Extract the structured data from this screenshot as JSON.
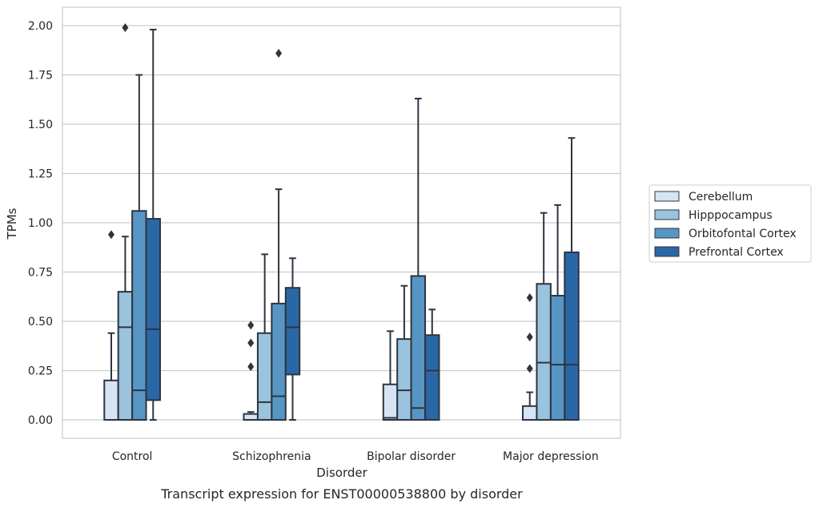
{
  "caption": "Transcript expression for ENST00000538800 by disorder",
  "chart_data": {
    "type": "box",
    "title": "",
    "xlabel": "Disorder",
    "ylabel": "TPMs",
    "ylim": [
      -0.1,
      2.1
    ],
    "yticks": [
      "0.00",
      "0.25",
      "0.50",
      "0.75",
      "1.00",
      "1.25",
      "1.50",
      "1.75",
      "2.00"
    ],
    "ytick_values": [
      0,
      0.25,
      0.5,
      0.75,
      1.0,
      1.25,
      1.5,
      1.75,
      2.0
    ],
    "grid": true,
    "legend_position": "right",
    "categories": [
      "Control",
      "Schizophrenia",
      "Bipolar disorder",
      "Major depression"
    ],
    "series": [
      {
        "name": "Cerebellum",
        "color": "#d6e4f3",
        "boxes": [
          {
            "q1": 0.0,
            "median": 0.0,
            "q3": 0.2,
            "whisker_low": 0.0,
            "whisker_high": 0.44,
            "outliers": [
              0.94
            ]
          },
          {
            "q1": 0.0,
            "median": 0.0,
            "q3": 0.03,
            "whisker_low": 0.0,
            "whisker_high": 0.04,
            "outliers": [
              0.27,
              0.39,
              0.48
            ]
          },
          {
            "q1": 0.0,
            "median": 0.01,
            "q3": 0.18,
            "whisker_low": 0.0,
            "whisker_high": 0.45,
            "outliers": []
          },
          {
            "q1": 0.0,
            "median": 0.0,
            "q3": 0.07,
            "whisker_low": 0.0,
            "whisker_high": 0.14,
            "outliers": [
              0.26,
              0.42,
              0.62
            ]
          }
        ]
      },
      {
        "name": "Hipppocampus",
        "color": "#9ac3dd",
        "boxes": [
          {
            "q1": 0.0,
            "median": 0.47,
            "q3": 0.65,
            "whisker_low": 0.0,
            "whisker_high": 0.93,
            "outliers": [
              1.99
            ]
          },
          {
            "q1": 0.0,
            "median": 0.09,
            "q3": 0.44,
            "whisker_low": 0.0,
            "whisker_high": 0.84,
            "outliers": []
          },
          {
            "q1": 0.0,
            "median": 0.15,
            "q3": 0.41,
            "whisker_low": 0.0,
            "whisker_high": 0.68,
            "outliers": []
          },
          {
            "q1": 0.0,
            "median": 0.29,
            "q3": 0.69,
            "whisker_low": 0.0,
            "whisker_high": 1.05,
            "outliers": []
          }
        ]
      },
      {
        "name": "Orbitofontal Cortex",
        "color": "#5796c4",
        "boxes": [
          {
            "q1": 0.0,
            "median": 0.15,
            "q3": 1.06,
            "whisker_low": 0.0,
            "whisker_high": 1.75,
            "outliers": []
          },
          {
            "q1": 0.0,
            "median": 0.12,
            "q3": 0.59,
            "whisker_low": 0.0,
            "whisker_high": 1.17,
            "outliers": [
              1.86
            ]
          },
          {
            "q1": 0.0,
            "median": 0.06,
            "q3": 0.73,
            "whisker_low": 0.0,
            "whisker_high": 1.63,
            "outliers": []
          },
          {
            "q1": 0.0,
            "median": 0.28,
            "q3": 0.63,
            "whisker_low": 0.0,
            "whisker_high": 1.09,
            "outliers": []
          }
        ]
      },
      {
        "name": "Prefrontal Cortex",
        "color": "#2a67a6",
        "boxes": [
          {
            "q1": 0.1,
            "median": 0.46,
            "q3": 1.02,
            "whisker_low": 0.0,
            "whisker_high": 1.98,
            "outliers": []
          },
          {
            "q1": 0.23,
            "median": 0.47,
            "q3": 0.67,
            "whisker_low": 0.0,
            "whisker_high": 0.82,
            "outliers": []
          },
          {
            "q1": 0.0,
            "median": 0.25,
            "q3": 0.43,
            "whisker_low": 0.0,
            "whisker_high": 0.56,
            "outliers": []
          },
          {
            "q1": 0.0,
            "median": 0.28,
            "q3": 0.85,
            "whisker_low": 0.0,
            "whisker_high": 1.43,
            "outliers": []
          }
        ]
      }
    ]
  }
}
